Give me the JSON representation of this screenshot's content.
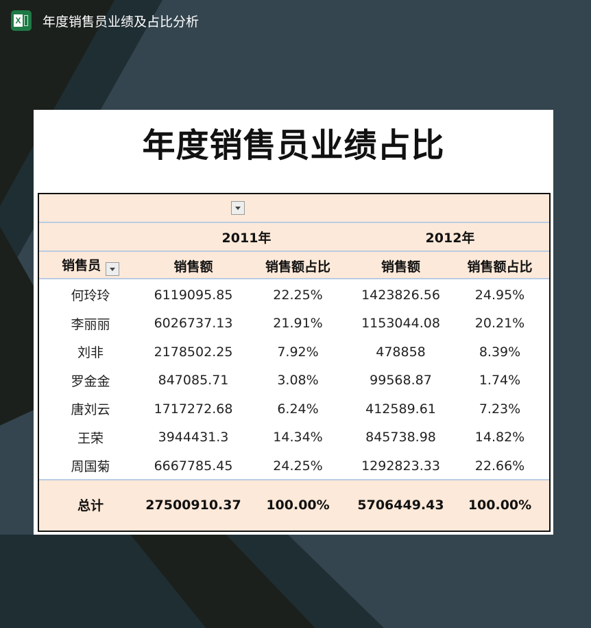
{
  "app": {
    "title": "年度销售员业绩及占比分析",
    "icon": "excel-icon"
  },
  "sheet": {
    "title": "年度销售员业绩占比",
    "years": [
      "2011年",
      "2012年"
    ],
    "headers": [
      "销售员",
      "销售额",
      "销售额占比",
      "销售额",
      "销售额占比"
    ],
    "rows": [
      [
        "何玲玲",
        "6119095.85",
        "22.25%",
        "1423826.56",
        "24.95%"
      ],
      [
        "李丽丽",
        "6026737.13",
        "21.91%",
        "1153044.08",
        "20.21%"
      ],
      [
        "刘非",
        "2178502.25",
        "7.92%",
        "478858",
        "8.39%"
      ],
      [
        "罗金金",
        "847085.71",
        "3.08%",
        "99568.87",
        "1.74%"
      ],
      [
        "唐刘云",
        "1717272.68",
        "6.24%",
        "412589.61",
        "7.23%"
      ],
      [
        "王荣",
        "3944431.3",
        "14.34%",
        "845738.98",
        "14.82%"
      ],
      [
        "周国菊",
        "6667785.45",
        "24.25%",
        "1292823.33",
        "22.66%"
      ]
    ],
    "total": [
      "总计",
      "27500910.37",
      "100.00%",
      "5706449.43",
      "100.00%"
    ]
  },
  "colors": {
    "header_fill": "#fde9d9",
    "separator": "#b8cce4",
    "excel_green": "#1e7a45"
  }
}
